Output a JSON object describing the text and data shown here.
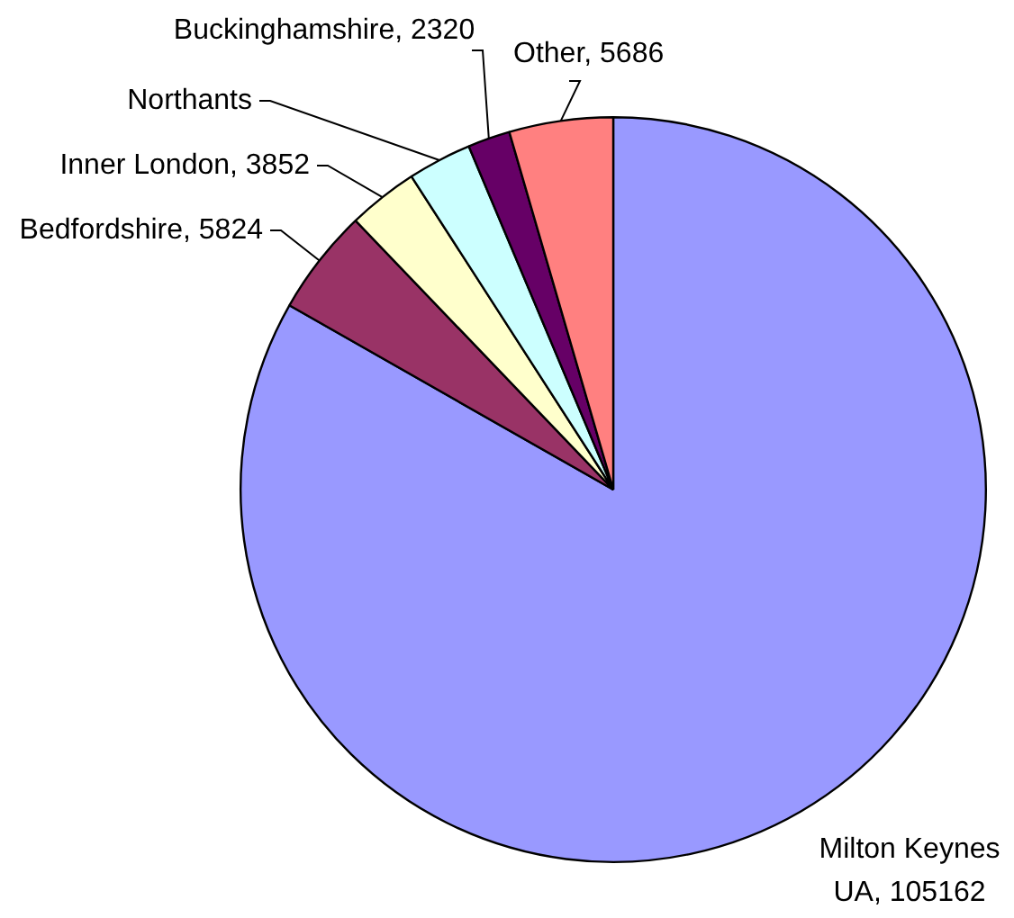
{
  "chart_data": {
    "type": "pie",
    "categories": [
      "Milton Keynes UA",
      "Bedfordshire",
      "Inner London",
      "Northants",
      "Buckinghamshire",
      "Other"
    ],
    "values": [
      105162,
      5824,
      3852,
      3500,
      2320,
      5686
    ],
    "value_labels": [
      "105162",
      "5824",
      "3852",
      null,
      "2320",
      "5686"
    ],
    "colors": [
      "#9999ff",
      "#993366",
      "#ffffcc",
      "#ccffff",
      "#660066",
      "#ff8080"
    ],
    "legend": false
  }
}
